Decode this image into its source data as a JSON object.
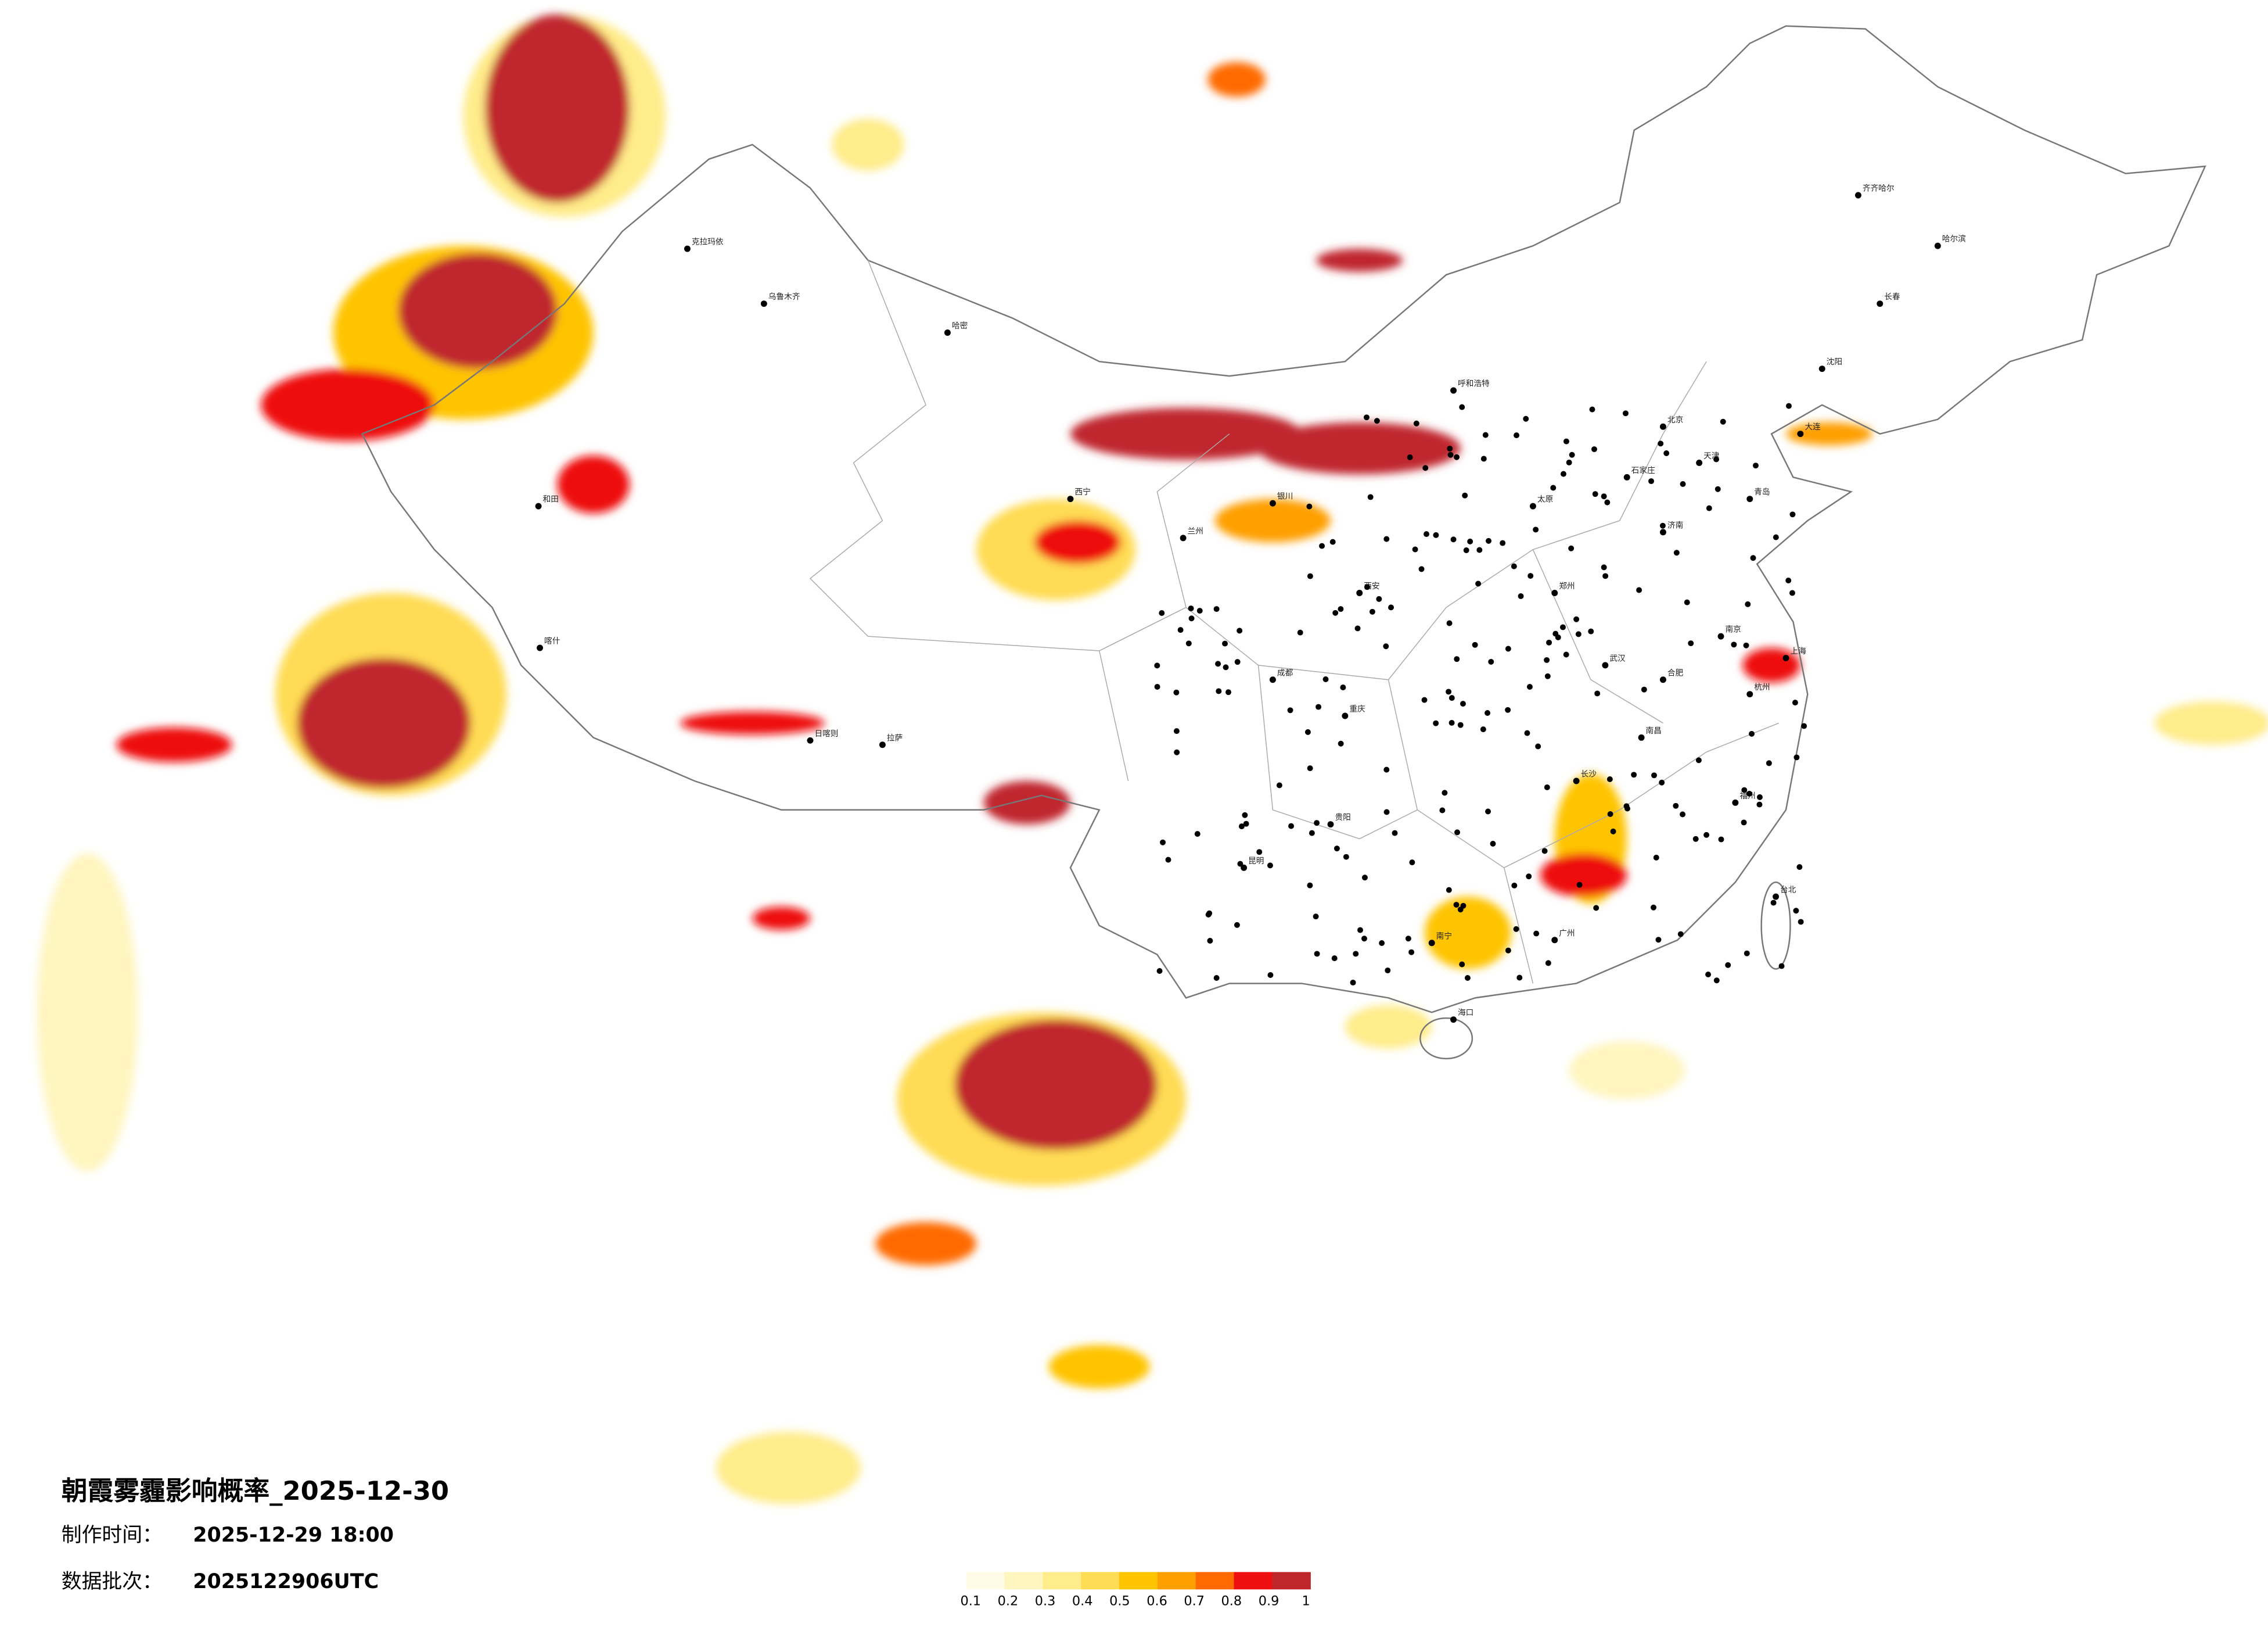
{
  "header": {
    "title": "朝霞雾霾影响概率_2025-12-30",
    "made_time": {
      "label": "制作时间：",
      "value": "2025-12-29 18:00"
    },
    "batch": {
      "label": "数据批次：",
      "value": "2025122906UTC"
    }
  },
  "legend": {
    "ticks": [
      0.1,
      0.2,
      0.3,
      0.4,
      0.5,
      0.6,
      0.7,
      0.8,
      0.9,
      1
    ],
    "colors": [
      "#fffbe6",
      "#fff5bf",
      "#ffec8a",
      "#ffdc55",
      "#ffc400",
      "#ff9f00",
      "#ff6a00",
      "#ee1010",
      "#c0272d"
    ]
  },
  "cities": [
    "克拉玛依",
    "乌鲁木齐",
    "哈密",
    "和田",
    "喀什",
    "拉萨",
    "日喀则",
    "西宁",
    "兰州",
    "银川",
    "呼和浩特",
    "北京",
    "天津",
    "石家庄",
    "太原",
    "济南",
    "郑州",
    "西安",
    "成都",
    "重庆",
    "贵阳",
    "昆明",
    "南宁",
    "广州",
    "长沙",
    "武汉",
    "南京",
    "上海",
    "杭州",
    "福州",
    "南昌",
    "合肥",
    "沈阳",
    "长春",
    "哈尔滨",
    "海口",
    "台北",
    "齐齐哈尔",
    "大连",
    "青岛"
  ]
}
